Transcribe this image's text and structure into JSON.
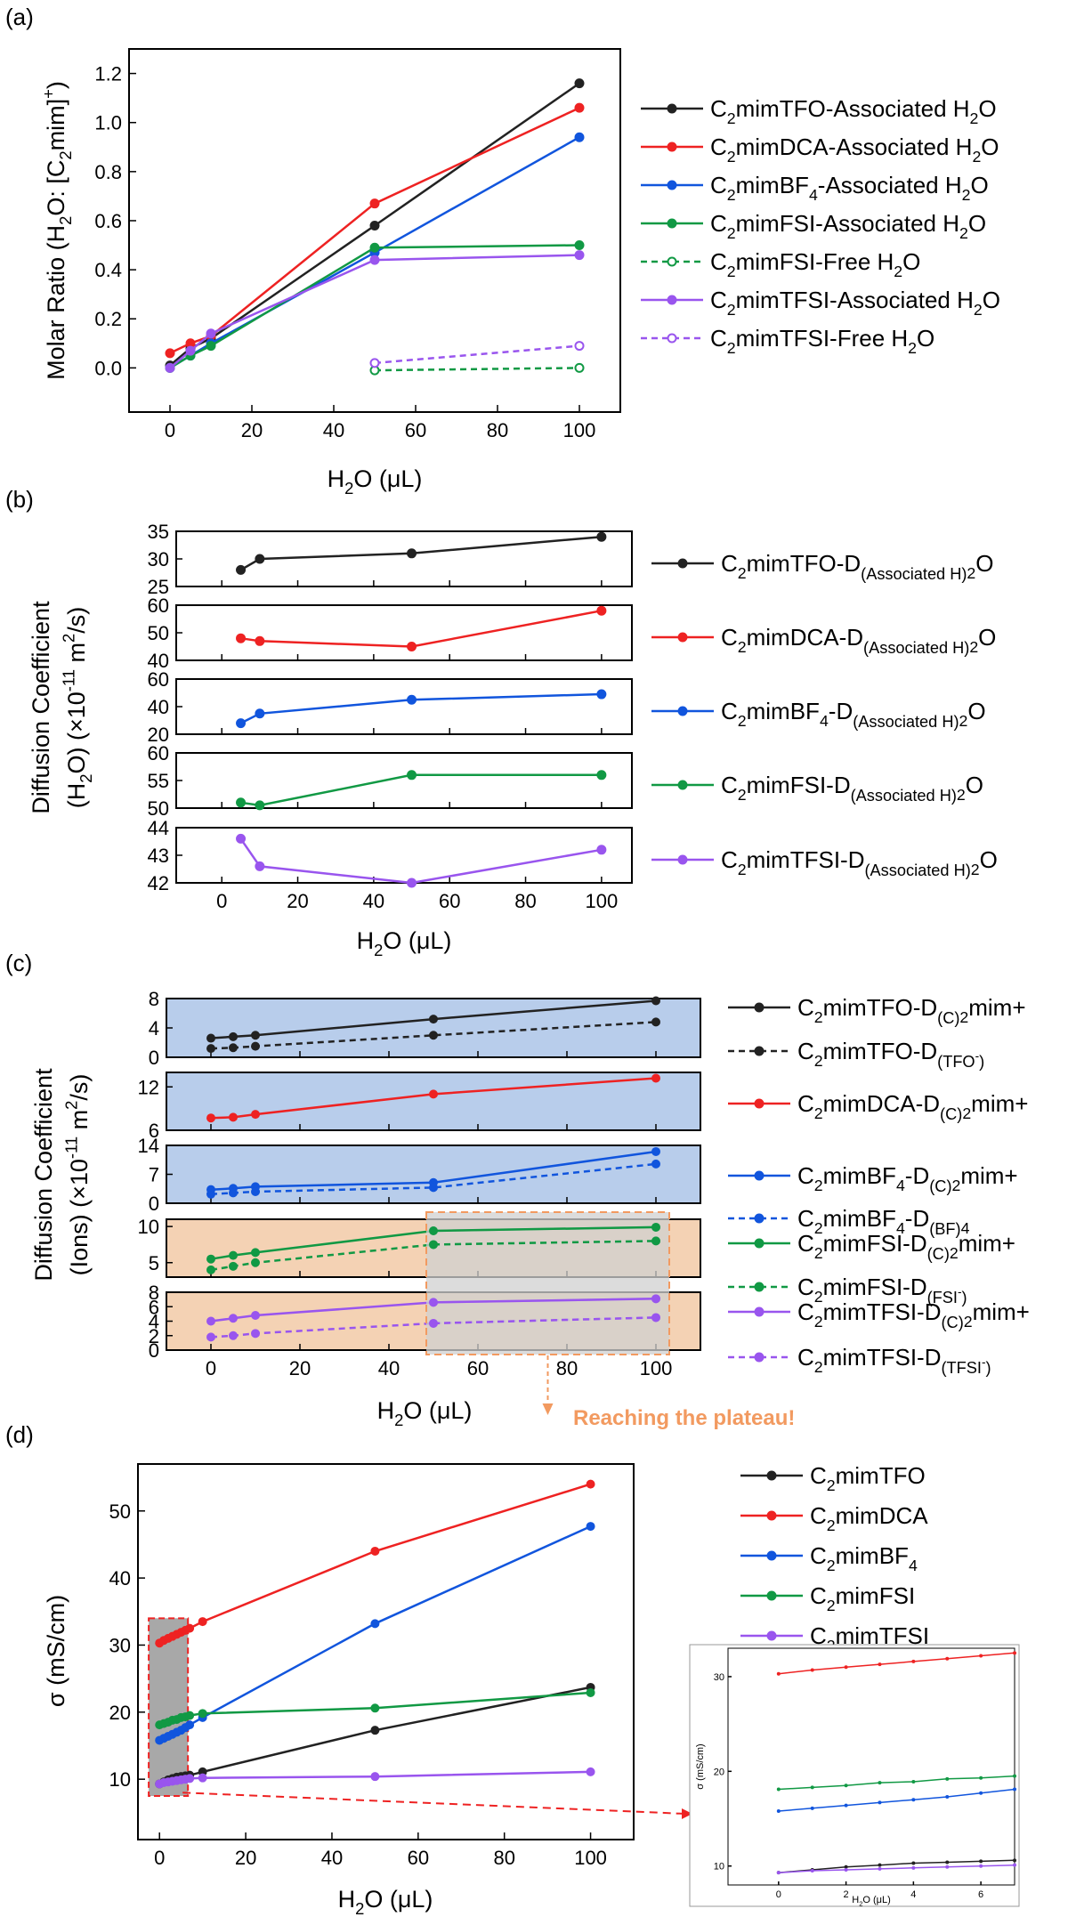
{
  "colors": {
    "TFO": "#222222",
    "DCA": "#ee2222",
    "BF4": "#1155dd",
    "FSI": "#119944",
    "TFSI": "#9955ee",
    "bg_blue": "#b8cdeb",
    "bg_orange": "#f4d2b4",
    "plateau_fill": "#d0d0d0",
    "plateau_edge": "#f29a60",
    "note": "#f29a60"
  },
  "chart_data": [
    {
      "id": "a",
      "panel_label": "(a)",
      "type": "line",
      "xlabel": "H2O (μL)",
      "ylabel": "Molar Ratio (H2O: [C2mim]+)",
      "xlim": [
        -10,
        110
      ],
      "ylim": [
        -0.18,
        1.3
      ],
      "xticks": [
        0,
        20,
        40,
        60,
        80,
        100
      ],
      "yticks": [
        0.0,
        0.2,
        0.4,
        0.6,
        0.8,
        1.0,
        1.2
      ],
      "legend_position": "right",
      "series": [
        {
          "name": "C2mimTFO-Associated H2O",
          "color_key": "TFO",
          "dashed": false,
          "open": false,
          "x": [
            0,
            5,
            10,
            50,
            100
          ],
          "y": [
            0.01,
            0.08,
            0.12,
            0.58,
            1.16
          ]
        },
        {
          "name": "C2mimDCA-Associated H2O",
          "color_key": "DCA",
          "dashed": false,
          "open": false,
          "x": [
            0,
            5,
            10,
            50,
            100
          ],
          "y": [
            0.06,
            0.1,
            0.13,
            0.67,
            1.06
          ]
        },
        {
          "name": "C2mimBF4-Associated H2O",
          "color_key": "BF4",
          "dashed": false,
          "open": false,
          "x": [
            0,
            5,
            10,
            50,
            100
          ],
          "y": [
            0.0,
            0.05,
            0.1,
            0.47,
            0.94
          ]
        },
        {
          "name": "C2mimFSI-Associated H2O",
          "color_key": "FSI",
          "dashed": false,
          "open": false,
          "x": [
            0,
            5,
            10,
            50,
            100
          ],
          "y": [
            0.0,
            0.05,
            0.09,
            0.49,
            0.5
          ]
        },
        {
          "name": "C2mimFSI-Free H2O",
          "color_key": "FSI",
          "dashed": true,
          "open": true,
          "x": [
            50,
            100
          ],
          "y": [
            -0.01,
            0.0
          ]
        },
        {
          "name": "C2mimTFSI-Associated H2O",
          "color_key": "TFSI",
          "dashed": false,
          "open": false,
          "x": [
            0,
            5,
            10,
            50,
            100
          ],
          "y": [
            0.0,
            0.07,
            0.14,
            0.44,
            0.46
          ]
        },
        {
          "name": "C2mimTFSI-Free H2O",
          "color_key": "TFSI",
          "dashed": true,
          "open": true,
          "x": [
            50,
            100
          ],
          "y": [
            0.02,
            0.09
          ]
        }
      ]
    },
    {
      "id": "b",
      "panel_label": "(b)",
      "type": "line",
      "xlabel": "H2O (μL)",
      "ylabel_line1": "Diffusion Coefficient",
      "ylabel_line2": "(H2O) (×10-11 m2/s)",
      "xlim": [
        -12,
        108
      ],
      "xticks": [
        0,
        20,
        40,
        60,
        80,
        100
      ],
      "legend_position": "right",
      "subplots": [
        {
          "name": "C2mimTFO-D(Associated H2O)",
          "color_key": "TFO",
          "ylim": [
            25,
            35
          ],
          "yticks": [
            25,
            30,
            35
          ],
          "x": [
            5,
            10,
            50,
            100
          ],
          "y": [
            28,
            30,
            31,
            34
          ]
        },
        {
          "name": "C2mimDCA-D(Associated H2O)",
          "color_key": "DCA",
          "ylim": [
            40,
            60
          ],
          "yticks": [
            40,
            50,
            60
          ],
          "x": [
            5,
            10,
            50,
            100
          ],
          "y": [
            48,
            47,
            45,
            58
          ]
        },
        {
          "name": "C2mimBF4-D(Associated H2O)",
          "color_key": "BF4",
          "ylim": [
            20,
            60
          ],
          "yticks": [
            20,
            40,
            60
          ],
          "x": [
            5,
            10,
            50,
            100
          ],
          "y": [
            28,
            35,
            45,
            49
          ]
        },
        {
          "name": "C2mimFSI-D(Associated H2O)",
          "color_key": "FSI",
          "ylim": [
            50,
            60
          ],
          "yticks": [
            50,
            55,
            60
          ],
          "x": [
            5,
            10,
            50,
            100
          ],
          "y": [
            51,
            50.5,
            56,
            56
          ]
        },
        {
          "name": "C2mimTFSI-D(Associated H2O)",
          "color_key": "TFSI",
          "ylim": [
            42,
            44
          ],
          "yticks": [
            42,
            43,
            44
          ],
          "x": [
            5,
            10,
            50,
            100
          ],
          "y": [
            43.6,
            42.6,
            42.0,
            43.2
          ]
        }
      ]
    },
    {
      "id": "c",
      "panel_label": "(c)",
      "type": "line",
      "xlabel": "H2O (μL)",
      "ylabel_line1": "Diffusion Coefficient",
      "ylabel_line2": "(Ions) (×10-11 m2/s)",
      "xlim": [
        -10,
        110
      ],
      "xticks": [
        0,
        20,
        40,
        60,
        80,
        100
      ],
      "legend_position": "right",
      "annotation": "Reaching the plateau!",
      "highlight_x": [
        50,
        100
      ],
      "subplots": [
        {
          "bg": "bg_blue",
          "ylim": [
            0,
            8
          ],
          "yticks": [
            0,
            4,
            8
          ],
          "color_key": "TFO",
          "series": [
            {
              "name": "C2mimTFO-D(C2mim+)",
              "dashed": false,
              "x": [
                0,
                5,
                10,
                50,
                100
              ],
              "y": [
                2.6,
                2.8,
                3.0,
                5.2,
                7.7
              ]
            },
            {
              "name": "C2mimTFO-D(TFO-)",
              "dashed": true,
              "x": [
                0,
                5,
                10,
                50,
                100
              ],
              "y": [
                1.2,
                1.3,
                1.5,
                3.0,
                4.8
              ]
            }
          ]
        },
        {
          "bg": "bg_blue",
          "ylim": [
            6,
            14
          ],
          "yticks": [
            6,
            12
          ],
          "color_key": "DCA",
          "series": [
            {
              "name": "C2mimDCA-D(C2mim+)",
              "dashed": false,
              "x": [
                0,
                5,
                10,
                50,
                100
              ],
              "y": [
                7.7,
                7.8,
                8.2,
                11.0,
                13.2
              ]
            }
          ]
        },
        {
          "bg": "bg_blue",
          "ylim": [
            0,
            14
          ],
          "yticks": [
            0,
            7,
            14
          ],
          "color_key": "BF4",
          "series": [
            {
              "name": "C2mimBF4-D(C2mim+)",
              "dashed": false,
              "x": [
                0,
                5,
                10,
                50,
                100
              ],
              "y": [
                3.3,
                3.6,
                4.0,
                5.0,
                12.5
              ]
            },
            {
              "name": "C2mimBF4-D(BF4)",
              "dashed": true,
              "x": [
                0,
                5,
                10,
                50,
                100
              ],
              "y": [
                2.2,
                2.5,
                2.8,
                3.8,
                9.5
              ]
            }
          ]
        },
        {
          "bg": "bg_orange",
          "ylim": [
            3,
            11
          ],
          "yticks": [
            5,
            10
          ],
          "color_key": "FSI",
          "series": [
            {
              "name": "C2mimFSI-D(C2mim+)",
              "dashed": false,
              "x": [
                0,
                5,
                10,
                50,
                100
              ],
              "y": [
                5.5,
                6.0,
                6.4,
                9.4,
                9.9
              ]
            },
            {
              "name": "C2mimFSI-D(FSI-)",
              "dashed": true,
              "x": [
                0,
                5,
                10,
                50,
                100
              ],
              "y": [
                4.0,
                4.5,
                5.0,
                7.5,
                8.0
              ]
            }
          ]
        },
        {
          "bg": "bg_orange",
          "ylim": [
            0,
            8
          ],
          "yticks": [
            0,
            2,
            4,
            6,
            8
          ],
          "color_key": "TFSI",
          "series": [
            {
              "name": "C2mimTFSI-D(C2mim+)",
              "dashed": false,
              "x": [
                0,
                5,
                10,
                50,
                100
              ],
              "y": [
                4.0,
                4.4,
                4.8,
                6.6,
                7.1
              ]
            },
            {
              "name": "C2mimTFSI-D(TFSI-)",
              "dashed": true,
              "x": [
                0,
                5,
                10,
                50,
                100
              ],
              "y": [
                1.8,
                2.0,
                2.3,
                3.7,
                4.5
              ]
            }
          ]
        }
      ]
    },
    {
      "id": "d",
      "panel_label": "(d)",
      "type": "line",
      "xlabel": "H2O (μL)",
      "ylabel": "σ (mS/cm)",
      "xlim": [
        -5,
        110
      ],
      "ylim": [
        1,
        57
      ],
      "xticks": [
        0,
        20,
        40,
        60,
        80,
        100
      ],
      "yticks": [
        10,
        20,
        30,
        40,
        50
      ],
      "legend_position": "top-right",
      "series": [
        {
          "name": "C2mimTFO",
          "color_key": "TFO",
          "x": [
            0,
            1,
            2,
            3,
            4,
            5,
            6,
            7,
            10,
            50,
            100
          ],
          "y": [
            9.3,
            9.6,
            9.9,
            10.1,
            10.3,
            10.4,
            10.5,
            10.6,
            11.1,
            17.3,
            23.7
          ]
        },
        {
          "name": "C2mimDCA",
          "color_key": "DCA",
          "x": [
            0,
            1,
            2,
            3,
            4,
            5,
            6,
            7,
            10,
            50,
            100
          ],
          "y": [
            30.3,
            30.7,
            31.0,
            31.3,
            31.6,
            31.9,
            32.2,
            32.5,
            33.5,
            44.0,
            54.0
          ]
        },
        {
          "name": "C2mimBF4",
          "color_key": "BF4",
          "x": [
            0,
            1,
            2,
            3,
            4,
            5,
            6,
            7,
            10,
            50,
            100
          ],
          "y": [
            15.8,
            16.1,
            16.4,
            16.7,
            17.0,
            17.3,
            17.7,
            18.1,
            19.2,
            33.2,
            47.7
          ]
        },
        {
          "name": "C2mimFSI",
          "color_key": "FSI",
          "x": [
            0,
            1,
            2,
            3,
            4,
            5,
            6,
            7,
            10,
            50,
            100
          ],
          "y": [
            18.1,
            18.3,
            18.5,
            18.8,
            18.9,
            19.2,
            19.3,
            19.5,
            19.8,
            20.6,
            22.9
          ]
        },
        {
          "name": "C2mimTFSI",
          "color_key": "TFSI",
          "x": [
            0,
            1,
            2,
            3,
            4,
            5,
            6,
            7,
            10,
            50,
            100
          ],
          "y": [
            9.3,
            9.5,
            9.6,
            9.7,
            9.8,
            9.9,
            10.0,
            10.1,
            10.2,
            10.4,
            11.1
          ]
        }
      ],
      "inset": {
        "xlabel": "H2O (μL)",
        "ylabel": "σ (mS/cm)",
        "xlim": [
          -1.5,
          7
        ],
        "ylim": [
          8,
          33
        ],
        "xticks": [
          0,
          2,
          4,
          6
        ],
        "yticks": [
          10,
          20,
          30
        ],
        "highlight_x": [
          -2,
          7
        ]
      }
    }
  ]
}
